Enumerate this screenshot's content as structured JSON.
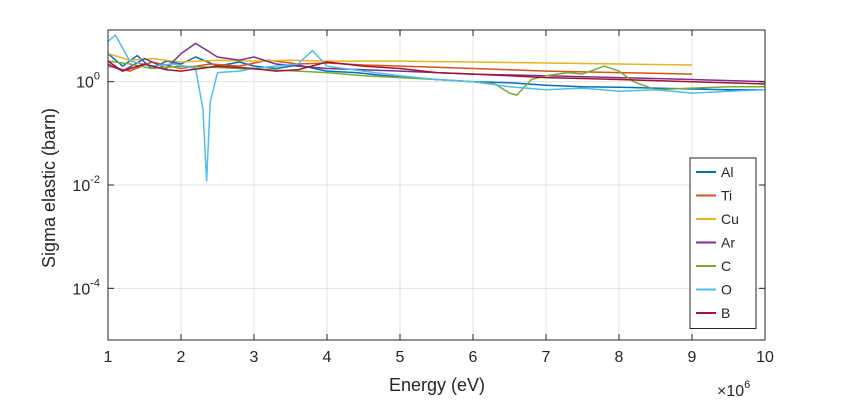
{
  "chart_data": {
    "type": "line",
    "title": "",
    "xlabel": "Energy (eV)",
    "ylabel": "Sigma elastic (barn)",
    "x_multiplier_label": "×10",
    "x_multiplier_exponent": "6",
    "xlim": [
      1,
      10
    ],
    "ylim_log10": [
      -5,
      1
    ],
    "yscale": "log",
    "grid": true,
    "legend_position": "bottom-right",
    "x_ticks": [
      1,
      2,
      3,
      4,
      5,
      6,
      7,
      8,
      9,
      10
    ],
    "x_tick_labels": [
      "1",
      "2",
      "3",
      "4",
      "5",
      "6",
      "7",
      "8",
      "9",
      "10"
    ],
    "y_ticks_log10": [
      -4,
      -2,
      0
    ],
    "y_tick_labels": [
      {
        "base": "10",
        "exp": "-4"
      },
      {
        "base": "10",
        "exp": "-2"
      },
      {
        "base": "10",
        "exp": "0"
      }
    ],
    "series": [
      {
        "name": "Al",
        "color": "#0072BD",
        "x": [
          1.0,
          1.2,
          1.4,
          1.6,
          1.8,
          2.0,
          2.2,
          2.5,
          2.8,
          3.0,
          3.3,
          3.6,
          4.0,
          4.4,
          4.8,
          5.0,
          5.5,
          6.0,
          6.5,
          7.0,
          7.5,
          8.0,
          8.5,
          9.0,
          9.5,
          10.0
        ],
        "y": [
          3.5,
          2.0,
          3.2,
          1.8,
          2.5,
          2.2,
          3.0,
          2.0,
          2.4,
          2.0,
          1.8,
          2.1,
          1.6,
          1.5,
          1.3,
          1.25,
          1.1,
          1.0,
          0.95,
          0.85,
          0.8,
          0.78,
          0.75,
          0.72,
          0.7,
          0.7
        ]
      },
      {
        "name": "Ti",
        "color": "#D95319",
        "x": [
          1.0,
          1.3,
          1.6,
          2.0,
          2.4,
          2.8,
          3.2,
          3.6,
          4.0,
          4.5,
          5.0,
          5.5,
          6.0,
          6.5,
          7.0,
          8.0,
          9.0
        ],
        "y": [
          2.0,
          1.6,
          2.4,
          1.8,
          2.2,
          2.0,
          2.6,
          2.2,
          2.3,
          2.1,
          2.0,
          1.9,
          1.8,
          1.7,
          1.6,
          1.5,
          1.4
        ]
      },
      {
        "name": "Cu",
        "color": "#EDB120",
        "x": [
          1.0,
          1.3,
          1.6,
          2.0,
          2.5,
          3.0,
          3.5,
          4.0,
          5.0,
          6.0,
          7.0,
          8.0,
          9.0
        ],
        "y": [
          3.5,
          2.6,
          2.8,
          2.4,
          2.6,
          2.5,
          2.6,
          2.5,
          2.5,
          2.4,
          2.3,
          2.2,
          2.1
        ]
      },
      {
        "name": "Ar",
        "color": "#7E2F8E",
        "x": [
          1.0,
          1.2,
          1.5,
          1.8,
          2.0,
          2.2,
          2.5,
          2.8,
          3.0,
          3.3,
          3.6,
          4.0,
          4.5,
          5.0,
          6.0,
          7.0,
          8.0,
          9.0,
          10.0
        ],
        "y": [
          2.2,
          1.6,
          2.8,
          1.8,
          3.5,
          5.5,
          3.0,
          2.6,
          3.0,
          2.2,
          2.0,
          1.8,
          1.7,
          1.6,
          1.4,
          1.3,
          1.2,
          1.1,
          1.0
        ]
      },
      {
        "name": "C",
        "color": "#77AC30",
        "x": [
          1.0,
          1.3,
          1.6,
          2.0,
          2.4,
          2.8,
          3.2,
          3.6,
          4.0,
          4.5,
          5.0,
          5.5,
          6.0,
          6.3,
          6.5,
          6.6,
          6.8,
          7.0,
          7.3,
          7.5,
          7.8,
          8.0,
          8.2,
          8.5,
          9.0,
          9.5,
          10.0
        ],
        "y": [
          2.5,
          2.2,
          1.8,
          2.0,
          1.9,
          1.8,
          1.7,
          1.6,
          1.5,
          1.3,
          1.2,
          1.1,
          1.0,
          0.9,
          0.6,
          0.55,
          1.1,
          1.3,
          1.5,
          1.4,
          2.0,
          1.6,
          1.0,
          0.7,
          0.75,
          0.8,
          0.8
        ]
      },
      {
        "name": "O",
        "color": "#4DBEEE",
        "x": [
          1.0,
          1.1,
          1.3,
          1.6,
          1.9,
          2.2,
          2.3,
          2.35,
          2.4,
          2.5,
          2.8,
          3.0,
          3.3,
          3.6,
          3.8,
          4.0,
          4.5,
          5.0,
          5.5,
          6.0,
          6.5,
          7.0,
          7.5,
          8.0,
          8.5,
          9.0,
          9.5,
          10.0
        ],
        "y": [
          6.0,
          8.0,
          2.5,
          2.0,
          2.2,
          1.8,
          0.3,
          0.012,
          0.4,
          1.5,
          1.6,
          1.8,
          2.0,
          2.2,
          4.0,
          2.0,
          1.6,
          1.3,
          1.1,
          1.0,
          0.8,
          0.7,
          0.75,
          0.65,
          0.7,
          0.6,
          0.65,
          0.7
        ]
      },
      {
        "name": "B",
        "color": "#A2142F",
        "x": [
          1.0,
          1.2,
          1.5,
          1.8,
          2.0,
          2.5,
          3.0,
          3.3,
          3.6,
          4.0,
          4.5,
          5.0,
          5.5,
          6.0,
          6.5,
          7.0,
          7.5,
          8.0,
          9.0,
          10.0
        ],
        "y": [
          2.5,
          1.6,
          2.2,
          1.7,
          1.6,
          2.0,
          1.8,
          1.6,
          1.7,
          2.4,
          2.0,
          1.8,
          1.5,
          1.4,
          1.3,
          1.2,
          1.15,
          1.1,
          1.0,
          0.9
        ]
      }
    ]
  }
}
